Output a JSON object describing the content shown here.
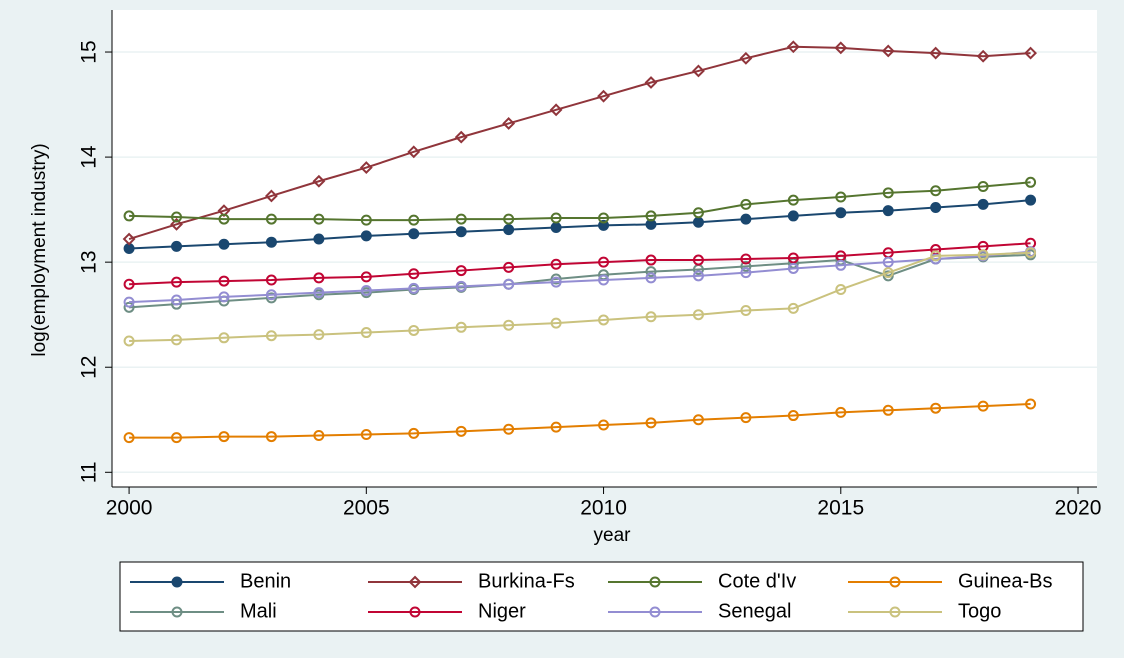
{
  "chart_data": {
    "type": "line",
    "x": [
      2000,
      2001,
      2002,
      2003,
      2004,
      2005,
      2006,
      2007,
      2008,
      2009,
      2010,
      2011,
      2012,
      2013,
      2014,
      2015,
      2016,
      2017,
      2018,
      2019
    ],
    "series": [
      {
        "name": "Benin",
        "color": "#1a476f",
        "marker": "filled-circle",
        "values": [
          13.13,
          13.15,
          13.17,
          13.19,
          13.22,
          13.25,
          13.27,
          13.29,
          13.31,
          13.33,
          13.35,
          13.36,
          13.38,
          13.41,
          13.44,
          13.47,
          13.49,
          13.52,
          13.55,
          13.59
        ]
      },
      {
        "name": "Burkina-Fs",
        "color": "#90353b",
        "marker": "diamond",
        "values": [
          13.22,
          13.36,
          13.49,
          13.63,
          13.77,
          13.9,
          14.05,
          14.19,
          14.32,
          14.45,
          14.58,
          14.71,
          14.82,
          14.94,
          15.05,
          15.04,
          15.01,
          14.99,
          14.96,
          14.99
        ]
      },
      {
        "name": "Cote d'Iv",
        "color": "#55752f",
        "marker": "circle",
        "values": [
          13.44,
          13.43,
          13.41,
          13.41,
          13.41,
          13.4,
          13.4,
          13.41,
          13.41,
          13.42,
          13.42,
          13.44,
          13.47,
          13.55,
          13.59,
          13.62,
          13.66,
          13.68,
          13.72,
          13.76
        ]
      },
      {
        "name": "Guinea-Bs",
        "color": "#e37e00",
        "marker": "circle",
        "values": [
          11.33,
          11.33,
          11.34,
          11.34,
          11.35,
          11.36,
          11.37,
          11.39,
          11.41,
          11.43,
          11.45,
          11.47,
          11.5,
          11.52,
          11.54,
          11.57,
          11.59,
          11.61,
          11.63,
          11.65
        ]
      },
      {
        "name": "Mali",
        "color": "#6e8e84",
        "marker": "circle",
        "values": [
          12.57,
          12.6,
          12.63,
          12.66,
          12.69,
          12.71,
          12.74,
          12.76,
          12.79,
          12.84,
          12.88,
          12.91,
          12.93,
          12.96,
          12.99,
          13.02,
          12.87,
          13.03,
          13.05,
          13.07
        ]
      },
      {
        "name": "Niger",
        "color": "#c10534",
        "marker": "circle",
        "values": [
          12.79,
          12.81,
          12.82,
          12.83,
          12.85,
          12.86,
          12.89,
          12.92,
          12.95,
          12.98,
          13.0,
          13.02,
          13.02,
          13.03,
          13.04,
          13.06,
          13.09,
          13.12,
          13.15,
          13.18
        ]
      },
      {
        "name": "Senegal",
        "color": "#938dd2",
        "marker": "circle",
        "values": [
          12.62,
          12.64,
          12.67,
          12.69,
          12.71,
          12.73,
          12.75,
          12.77,
          12.79,
          12.81,
          12.83,
          12.85,
          12.87,
          12.9,
          12.94,
          12.97,
          13.0,
          13.03,
          13.06,
          13.1
        ]
      },
      {
        "name": "Togo",
        "color": "#cac27e",
        "marker": "circle",
        "values": [
          12.25,
          12.26,
          12.28,
          12.3,
          12.31,
          12.33,
          12.35,
          12.38,
          12.4,
          12.42,
          12.45,
          12.48,
          12.5,
          12.54,
          12.56,
          12.74,
          12.9,
          13.06,
          13.07,
          13.09
        ]
      }
    ],
    "x_label": "year",
    "y_label": "log(employment industry)",
    "xlim": [
      1999.64,
      2020.4
    ],
    "xticks": [
      2000,
      2005,
      2010,
      2015,
      2020
    ],
    "ylim": [
      10.86,
      15.4
    ],
    "yticks": [
      11,
      12,
      13,
      14,
      15
    ],
    "grid": true,
    "legend": "bottom"
  }
}
